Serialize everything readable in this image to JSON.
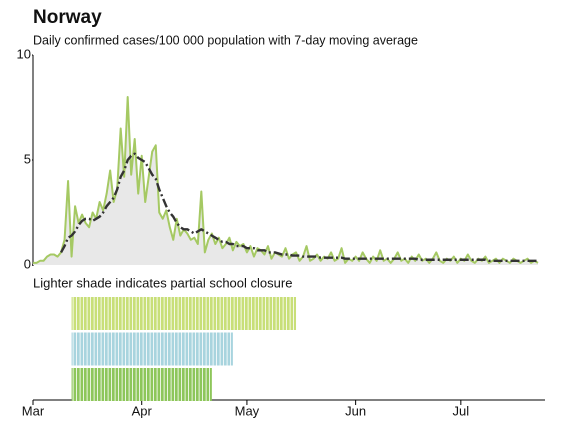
{
  "chart_data": {
    "type": "line",
    "title": "Norway",
    "subtitle": "Daily confirmed cases/100 000 population with 7-day moving average",
    "note": "Lighter shade indicates partial school closure",
    "x": [
      0,
      1,
      2,
      3,
      4,
      5,
      6,
      7,
      8,
      9,
      10,
      11,
      12,
      13,
      14,
      15,
      16,
      17,
      18,
      19,
      20,
      21,
      22,
      23,
      24,
      25,
      26,
      27,
      28,
      29,
      30,
      31,
      32,
      33,
      34,
      35,
      36,
      37,
      38,
      39,
      40,
      41,
      42,
      43,
      44,
      45,
      46,
      47,
      48,
      49,
      50,
      51,
      52,
      53,
      54,
      55,
      56,
      57,
      58,
      59,
      60,
      61,
      62,
      63,
      64,
      65,
      66,
      67,
      68,
      69,
      70,
      71,
      72,
      73,
      74,
      75,
      76,
      77,
      78,
      79,
      80,
      81,
      82,
      83,
      84,
      85,
      86,
      87,
      88,
      89,
      90,
      91,
      92,
      93,
      94,
      95,
      96,
      97,
      98,
      99,
      100,
      101,
      102,
      103,
      104,
      105,
      106,
      107,
      108,
      109,
      110,
      111,
      112,
      113,
      114,
      115,
      116,
      117,
      118,
      119,
      120,
      121,
      122,
      123,
      124,
      125,
      126,
      127,
      128,
      129,
      130,
      131,
      132,
      133,
      134,
      135,
      136,
      137,
      138,
      139,
      140,
      141,
      142,
      143,
      144
    ],
    "series": [
      {
        "color": "#a5c963",
        "fill": "#e8e8e8",
        "values": [
          0.1,
          0.1,
          0.2,
          0.2,
          0.4,
          0.5,
          0.5,
          0.4,
          0.6,
          1.2,
          4.0,
          0.4,
          2.8,
          2.0,
          2.4,
          2.0,
          1.8,
          2.5,
          2.2,
          3.0,
          2.6,
          3.4,
          4.5,
          3.0,
          3.6,
          6.5,
          4.2,
          8.0,
          4.3,
          6.0,
          3.4,
          5.2,
          3.0,
          4.2,
          5.4,
          5.7,
          2.5,
          2.2,
          2.6,
          1.8,
          1.2,
          2.2,
          1.4,
          1.7,
          1.5,
          1.2,
          1.3,
          1.0,
          3.5,
          0.6,
          1.2,
          1.5,
          1.0,
          1.3,
          0.8,
          1.0,
          1.3,
          0.7,
          1.1,
          0.9,
          1.0,
          0.6,
          0.9,
          0.4,
          0.8,
          0.7,
          0.5,
          0.9,
          0.3,
          0.6,
          0.5,
          0.4,
          0.8,
          0.3,
          0.5,
          0.6,
          0.2,
          0.4,
          0.9,
          0.2,
          0.3,
          0.5,
          0.2,
          0.4,
          0.3,
          0.6,
          0.2,
          0.3,
          0.8,
          0.1,
          0.3,
          0.2,
          0.4,
          0.2,
          0.6,
          0.3,
          0.1,
          0.4,
          0.2,
          0.7,
          0.2,
          0.3,
          0.1,
          0.3,
          0.6,
          0.2,
          0.3,
          0.1,
          0.4,
          0.2,
          0.5,
          0.2,
          0.3,
          0.1,
          0.3,
          0.6,
          0.2,
          0.1,
          0.3,
          0.2,
          0.4,
          0.1,
          0.3,
          0.2,
          0.5,
          0.2,
          0.1,
          0.3,
          0.2,
          0.4,
          0.1,
          0.2,
          0.3,
          0.1,
          0.3,
          0.2,
          0.1,
          0.3,
          0.2,
          0.1,
          0.2,
          0.3,
          0.1,
          0.2,
          0.1
        ]
      },
      {
        "color": "#333333",
        "dash": "9,3,2,3",
        "values": [
          null,
          null,
          null,
          null,
          null,
          null,
          null,
          null,
          0.6,
          0.9,
          1.3,
          1.4,
          1.6,
          1.9,
          2.1,
          2.2,
          2.2,
          2.1,
          2.2,
          2.3,
          2.5,
          2.8,
          3.0,
          3.2,
          3.6,
          4.2,
          4.5,
          5.0,
          5.2,
          5.3,
          5.1,
          5.0,
          4.9,
          4.6,
          4.3,
          4.1,
          3.6,
          3.2,
          2.8,
          2.5,
          2.3,
          2.0,
          1.8,
          1.7,
          1.7,
          1.6,
          1.5,
          1.6,
          1.7,
          1.6,
          1.5,
          1.4,
          1.3,
          1.2,
          1.1,
          1.1,
          1.0,
          1.0,
          0.9,
          0.9,
          0.9,
          0.8,
          0.8,
          0.8,
          0.7,
          0.7,
          0.7,
          0.6,
          0.6,
          0.6,
          0.55,
          0.5,
          0.5,
          0.5,
          0.45,
          0.45,
          0.45,
          0.4,
          0.4,
          0.4,
          0.4,
          0.4,
          0.35,
          0.35,
          0.35,
          0.35,
          0.35,
          0.35,
          0.35,
          0.3,
          0.3,
          0.3,
          0.3,
          0.3,
          0.3,
          0.3,
          0.3,
          0.3,
          0.3,
          0.3,
          0.3,
          0.3,
          0.3,
          0.3,
          0.3,
          0.3,
          0.3,
          0.3,
          0.3,
          0.3,
          0.25,
          0.25,
          0.25,
          0.25,
          0.25,
          0.25,
          0.25,
          0.25,
          0.25,
          0.25,
          0.25,
          0.25,
          0.25,
          0.25,
          0.25,
          0.25,
          0.25,
          0.25,
          0.25,
          0.25,
          0.2,
          0.2,
          0.2,
          0.2,
          0.2,
          0.2,
          0.2,
          0.2,
          0.2,
          0.2,
          0.2,
          0.2,
          0.2,
          0.2,
          0.2
        ]
      }
    ],
    "school_closures": [
      {
        "color": "#c8df78",
        "start": 11,
        "end": 75
      },
      {
        "color": "#a8d4de",
        "start": 11,
        "end": 57
      },
      {
        "color": "#8dc65a",
        "start": 11,
        "end": 51
      }
    ],
    "xlim": [
      0,
      146
    ],
    "xticks": [
      {
        "value": 0,
        "label": "Mar"
      },
      {
        "value": 31,
        "label": "Apr"
      },
      {
        "value": 61,
        "label": "May"
      },
      {
        "value": 92,
        "label": "Jun"
      },
      {
        "value": 122,
        "label": "Jul"
      }
    ],
    "ylim": [
      0,
      10
    ],
    "yticks": [
      0,
      5,
      10
    ]
  }
}
